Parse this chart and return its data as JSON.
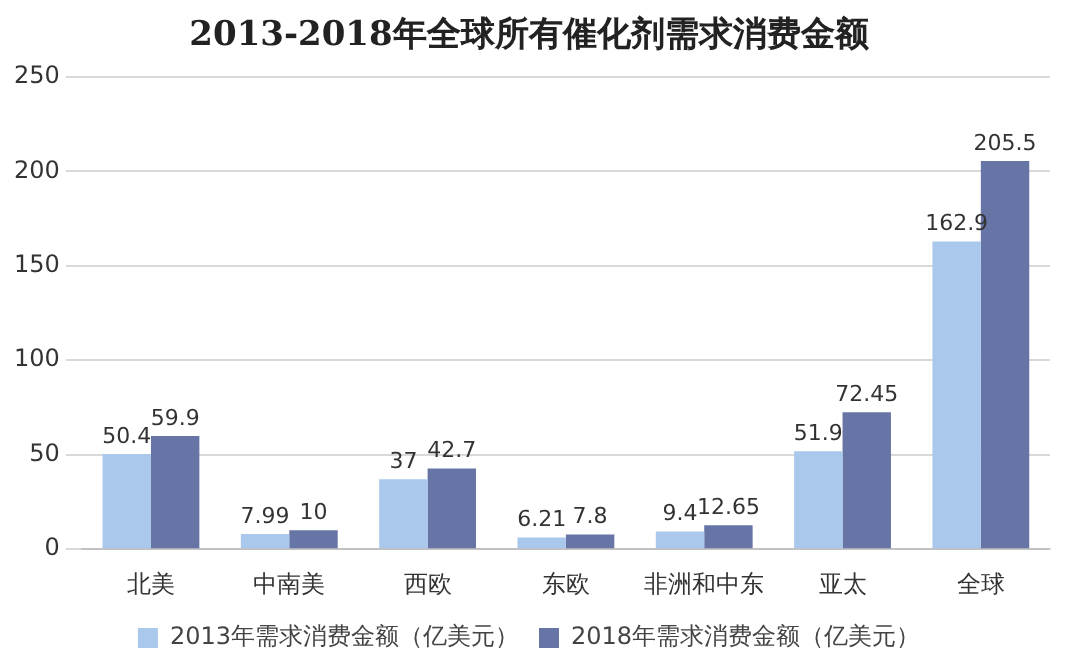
{
  "chart_data": {
    "type": "bar",
    "title": "2013-2018年全球所有催化剂需求消费金额",
    "categories": [
      "北美",
      "中南美",
      "西欧",
      "东欧",
      "非洲和中东",
      "亚太",
      "全球"
    ],
    "series": [
      {
        "name": "2013年需求消费金额（亿美元）",
        "color": "#a9c8ec",
        "values": [
          50.4,
          7.99,
          37,
          6.21,
          9.4,
          51.9,
          162.9
        ]
      },
      {
        "name": "2018年需求消费金额（亿美元）",
        "color": "#6674a6",
        "values": [
          59.9,
          10,
          42.7,
          7.8,
          12.65,
          72.45,
          205.5
        ]
      }
    ],
    "ylim": [
      0,
      250
    ],
    "yticks": [
      0,
      50,
      100,
      150,
      200,
      250
    ],
    "grid": "y",
    "legend": "bottom",
    "data_labels": true
  }
}
